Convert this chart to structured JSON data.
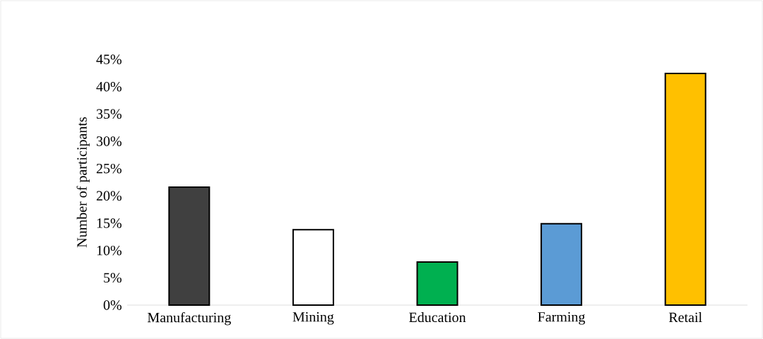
{
  "chart_data": {
    "type": "bar",
    "ylabel": "Number of participants",
    "categories": [
      "Manufacturing",
      "Mining",
      "Education",
      "Farming",
      "Retail"
    ],
    "values": [
      21.6,
      13.8,
      7.9,
      14.9,
      42.4
    ],
    "colors": [
      "#404040",
      "#ffffff",
      "#00b050",
      "#5b9bd5",
      "#ffc000"
    ],
    "ylim": [
      0,
      45
    ],
    "yticks": [
      {
        "value": 0,
        "label": "0%"
      },
      {
        "value": 5,
        "label": "5%"
      },
      {
        "value": 10,
        "label": "10%"
      },
      {
        "value": 15,
        "label": "15%"
      },
      {
        "value": 20,
        "label": "20%"
      },
      {
        "value": 25,
        "label": "25%"
      },
      {
        "value": 30,
        "label": "30%"
      },
      {
        "value": 35,
        "label": "35%"
      },
      {
        "value": 40,
        "label": "40%"
      },
      {
        "value": 45,
        "label": "45%"
      }
    ]
  }
}
